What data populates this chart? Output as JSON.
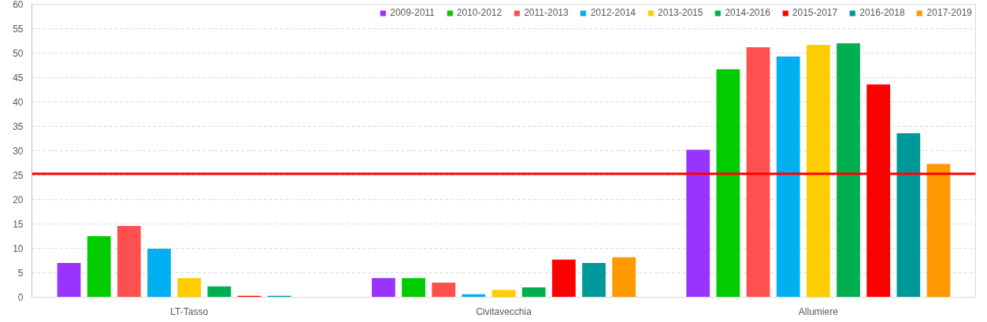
{
  "chart_data": {
    "type": "bar",
    "categories": [
      "LT-Tasso",
      "Civitavecchia",
      "Allumiere"
    ],
    "series": [
      {
        "name": "2009-2011",
        "color": "#9933ff",
        "values": [
          7.0,
          3.9,
          30.2
        ]
      },
      {
        "name": "2010-2012",
        "color": "#00cc00",
        "values": [
          12.5,
          3.9,
          46.7
        ]
      },
      {
        "name": "2011-2013",
        "color": "#ff5050",
        "values": [
          14.6,
          3.0,
          51.2
        ]
      },
      {
        "name": "2012-2014",
        "color": "#00b0f0",
        "values": [
          9.9,
          0.6,
          49.3
        ]
      },
      {
        "name": "2013-2015",
        "color": "#ffcc00",
        "values": [
          3.9,
          1.5,
          51.7
        ]
      },
      {
        "name": "2014-2016",
        "color": "#00b050",
        "values": [
          2.2,
          2.0,
          52.0
        ]
      },
      {
        "name": "2015-2017",
        "color": "#ff0000",
        "values": [
          0.3,
          7.7,
          43.6
        ]
      },
      {
        "name": "2016-2018",
        "color": "#009999",
        "values": [
          0.3,
          7.0,
          33.6
        ]
      },
      {
        "name": "2017-2019",
        "color": "#ff9900",
        "values": [
          0,
          8.2,
          27.3
        ]
      }
    ],
    "ylim": [
      0,
      60
    ],
    "yticks": [
      0,
      5,
      10,
      15,
      20,
      25,
      30,
      35,
      40,
      45,
      50,
      55,
      60
    ],
    "grid": "y",
    "legend": "top right",
    "ref_lines": [
      {
        "axis": "y",
        "value": 25.3,
        "color": "#ff0000"
      }
    ]
  }
}
